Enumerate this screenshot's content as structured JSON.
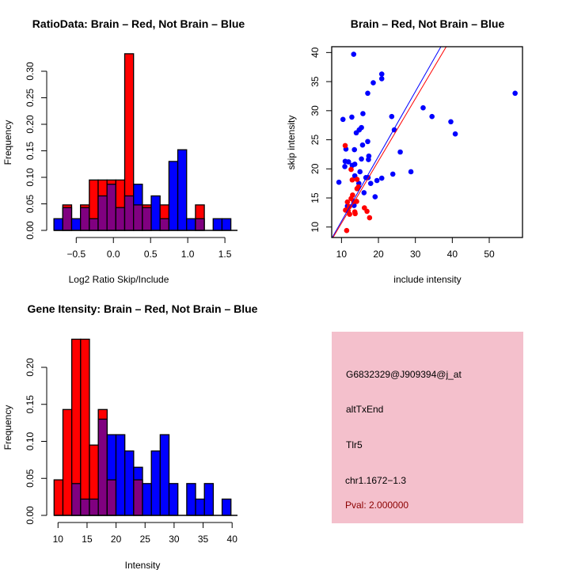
{
  "colors": {
    "brain": "#ff0000",
    "not_brain": "#0000ff",
    "overlap": "#800080",
    "info_bg": "#f4c0cc",
    "pval": "#8b0000"
  },
  "chart_data": [
    {
      "type": "bar",
      "title": "RatioData: Brain – Red, Not Brain – Blue",
      "xlabel": "Log2 Ratio Skip/Include",
      "ylabel": "Frequency",
      "bin_start": -0.8,
      "bin_width": 0.119,
      "xticks": [
        -0.5,
        0.0,
        0.5,
        1.0,
        1.5
      ],
      "xtick_labels": [
        "−0.5",
        "0.0",
        "0.5",
        "1.0",
        "1.5"
      ],
      "yticks": [
        0.0,
        0.05,
        0.1,
        0.15,
        0.2,
        0.25,
        0.3
      ],
      "ytick_labels": [
        "0.00",
        "0.05",
        "0.10",
        "0.15",
        "0.20",
        "0.25",
        "0.30"
      ],
      "series": [
        {
          "name": "Brain",
          "color": "red",
          "values": [
            0,
            0.048,
            0,
            0.048,
            0.095,
            0.095,
            0.095,
            0.095,
            0.333,
            0.048,
            0.048,
            0,
            0.048,
            0,
            0,
            0,
            0.048,
            0,
            0,
            0
          ]
        },
        {
          "name": "Not Brain",
          "color": "blue",
          "values": [
            0.022,
            0.043,
            0.022,
            0.043,
            0.022,
            0.065,
            0.087,
            0.043,
            0.065,
            0.087,
            0.043,
            0.065,
            0.022,
            0.13,
            0.152,
            0.022,
            0.022,
            0,
            0.022,
            0.022
          ]
        }
      ]
    },
    {
      "type": "scatter",
      "title": "Brain – Red, Not Brain – Blue",
      "xlabel": "include intensity",
      "ylabel": "skip intensity",
      "xlim": [
        7.35,
        59
      ],
      "ylim": [
        8.2,
        41
      ],
      "xticks": [
        10,
        20,
        30,
        40,
        50
      ],
      "yticks": [
        10,
        15,
        20,
        25,
        30,
        35,
        40
      ],
      "lines": [
        {
          "name": "Not Brain fit",
          "color": "blue",
          "slope": 1.115,
          "intercept": -0.16
        },
        {
          "name": "Brain fit",
          "color": "red",
          "slope": 1.07,
          "intercept": -0.04
        }
      ],
      "series": [
        {
          "name": "Not Brain",
          "color": "blue",
          "points": [
            [
              13.3,
              39.7
            ],
            [
              20.9,
              36.3
            ],
            [
              20.9,
              35.5
            ],
            [
              18.6,
              34.8
            ],
            [
              17.1,
              33.0
            ],
            [
              57,
              33.0
            ],
            [
              32.1,
              30.5
            ],
            [
              10.4,
              28.5
            ],
            [
              12.8,
              28.9
            ],
            [
              15.8,
              29.5
            ],
            [
              23.6,
              29.0
            ],
            [
              34.5,
              29.0
            ],
            [
              39.6,
              28.1
            ],
            [
              40.8,
              26.0
            ],
            [
              15.4,
              27.1
            ],
            [
              14.8,
              26.7
            ],
            [
              14.0,
              26.2
            ],
            [
              24.3,
              26.7
            ],
            [
              17.1,
              24.7
            ],
            [
              15.7,
              24.1
            ],
            [
              11.2,
              23.4
            ],
            [
              13.5,
              23.3
            ],
            [
              25.9,
              22.9
            ],
            [
              17.4,
              22.2
            ],
            [
              17.3,
              21.6
            ],
            [
              15.4,
              21.7
            ],
            [
              11.0,
              21.3
            ],
            [
              11.9,
              21.2
            ],
            [
              13.6,
              20.8
            ],
            [
              12.9,
              20.6
            ],
            [
              10.9,
              20.4
            ],
            [
              15.0,
              19.5
            ],
            [
              28.8,
              19.5
            ],
            [
              23.9,
              19.1
            ],
            [
              13.6,
              18.8
            ],
            [
              16.6,
              18.5
            ],
            [
              17.2,
              18.5
            ],
            [
              20.9,
              18.4
            ],
            [
              19.6,
              18.0
            ],
            [
              17.9,
              17.5
            ],
            [
              14.7,
              17.5
            ],
            [
              9.3,
              17.7
            ],
            [
              16.1,
              15.9
            ],
            [
              19.1,
              15.2
            ],
            [
              11.6,
              13.6
            ],
            [
              13.4,
              13.7
            ]
          ]
        },
        {
          "name": "Brain",
          "color": "red",
          "points": [
            [
              11.0,
              24.0
            ],
            [
              12.6,
              19.9
            ],
            [
              12.9,
              18.1
            ],
            [
              14.2,
              18.2
            ],
            [
              14.2,
              16.6
            ],
            [
              14.6,
              16.9
            ],
            [
              13.0,
              15.5
            ],
            [
              12.6,
              14.9
            ],
            [
              11.6,
              14.3
            ],
            [
              13.3,
              14.4
            ],
            [
              14.1,
              14.4
            ],
            [
              11.1,
              12.9
            ],
            [
              12.2,
              12.2
            ],
            [
              13.6,
              12.6
            ],
            [
              13.7,
              12.3
            ],
            [
              16.2,
              13.3
            ],
            [
              16.9,
              12.7
            ],
            [
              17.6,
              11.6
            ],
            [
              11.4,
              9.4
            ],
            [
              11.8,
              12.8
            ],
            [
              12.1,
              13.5
            ]
          ]
        }
      ]
    },
    {
      "type": "bar",
      "title": "Gene Itensity: Brain – Red, Not Brain – Blue",
      "xlabel": "Intensity",
      "ylabel": "Frequency",
      "bin_start": 9.32,
      "bin_width": 1.524,
      "xticks": [
        10,
        15,
        20,
        25,
        30,
        35,
        40
      ],
      "xtick_labels": [
        "10",
        "15",
        "20",
        "25",
        "30",
        "35",
        "40"
      ],
      "yticks": [
        0.0,
        0.05,
        0.1,
        0.15,
        0.2
      ],
      "ytick_labels": [
        "0.00",
        "0.05",
        "0.10",
        "0.15",
        "0.20"
      ],
      "series": [
        {
          "name": "Brain",
          "color": "red",
          "values": [
            0.048,
            0.143,
            0.238,
            0.238,
            0.095,
            0.143,
            0.048,
            0,
            0,
            0.048,
            0,
            0,
            0,
            0,
            0,
            0,
            0,
            0,
            0,
            0
          ]
        },
        {
          "name": "Not Brain",
          "color": "blue",
          "values": [
            0,
            0,
            0.043,
            0.022,
            0.022,
            0.13,
            0.109,
            0.109,
            0.087,
            0.065,
            0.043,
            0.087,
            0.109,
            0.043,
            0,
            0.043,
            0.022,
            0.043,
            0,
            0.022
          ]
        }
      ]
    }
  ],
  "info": {
    "probe": "G6832329@J909394@j_at",
    "event": "altTxEnd",
    "gene": "Tlr5",
    "location": "chr1.1672−1.3",
    "pval": "Pval: 2.000000"
  }
}
